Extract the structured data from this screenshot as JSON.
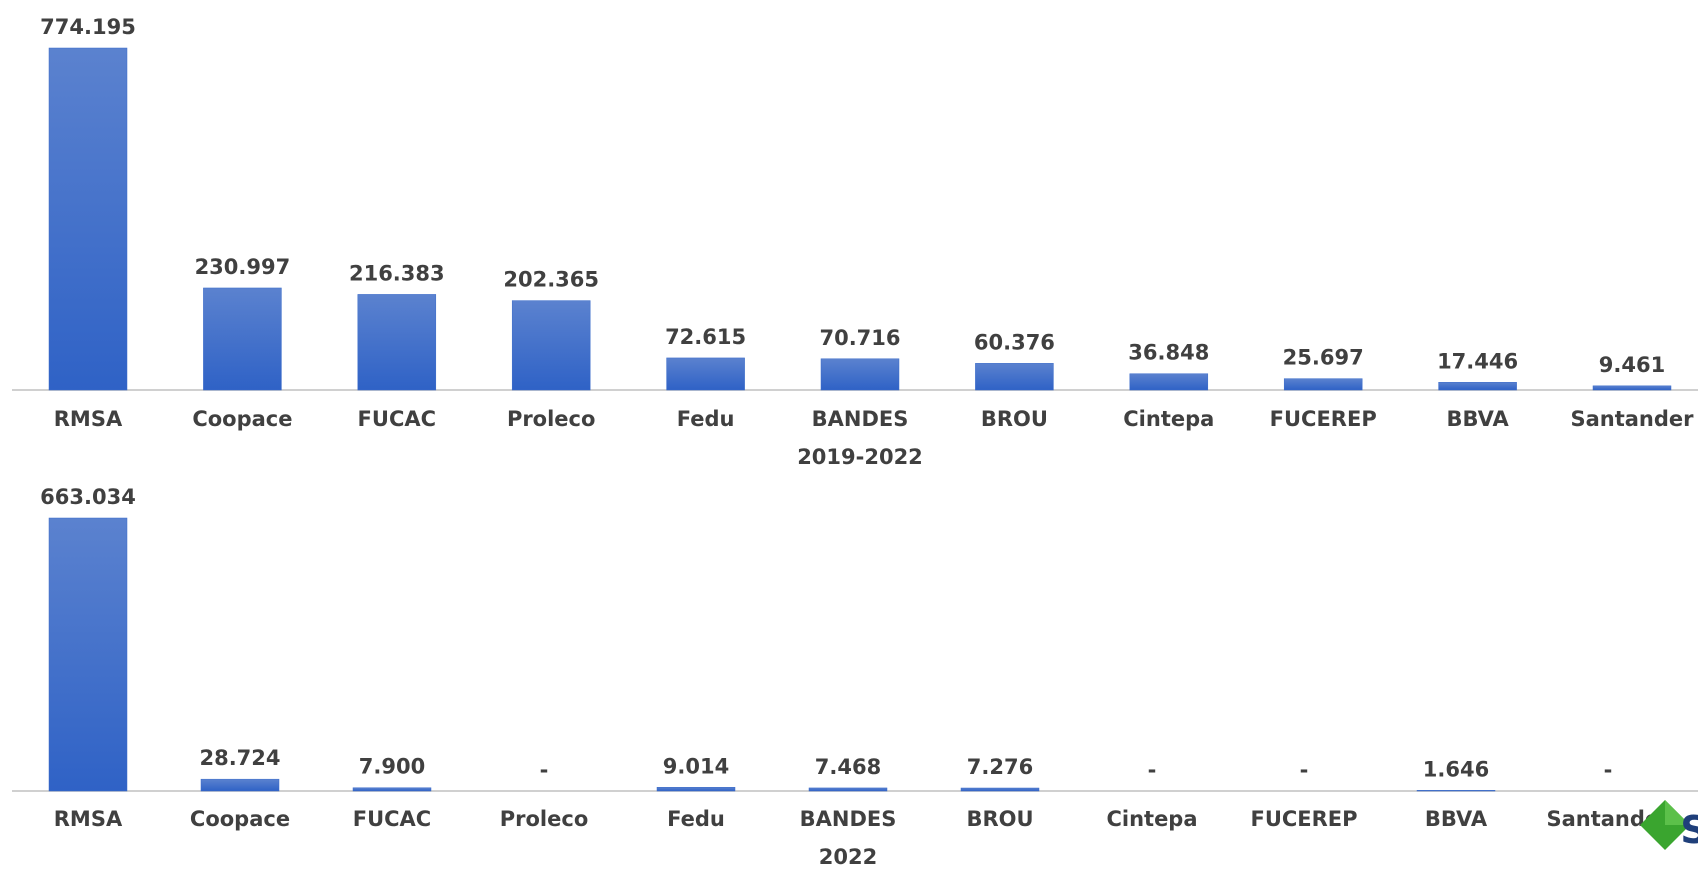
{
  "chart_data": [
    {
      "type": "bar",
      "title": "2019-2022",
      "categories": [
        "RMSA",
        "Coopace",
        "FUCAC",
        "Proleco",
        "Fedu",
        "BANDES",
        "BROU",
        "Cintepa",
        "FUCEREP",
        "BBVA",
        "Santander"
      ],
      "values": [
        774195,
        230997,
        216383,
        202365,
        72615,
        70716,
        60376,
        36848,
        25697,
        17446,
        9461
      ],
      "value_labels": [
        "774.195",
        "230.997",
        "216.383",
        "202.365",
        "72.615",
        "70.716",
        "60.376",
        "36.848",
        "25.697",
        "17.446",
        "9.461"
      ],
      "color": "#3a6bc9"
    },
    {
      "type": "bar",
      "title": "2022",
      "categories": [
        "RMSA",
        "Coopace",
        "FUCAC",
        "Proleco",
        "Fedu",
        "BANDES",
        "BROU",
        "Cintepa",
        "FUCEREP",
        "BBVA",
        "Santander"
      ],
      "values": [
        663034,
        28724,
        7900,
        0,
        9014,
        7468,
        7276,
        0,
        0,
        1646,
        0
      ],
      "value_labels": [
        "663.034",
        "28.724",
        "7.900",
        "-",
        "9.014",
        "7.468",
        "7.276",
        "-",
        "-",
        "1.646",
        "-"
      ],
      "color": "#3a6bc9"
    }
  ]
}
